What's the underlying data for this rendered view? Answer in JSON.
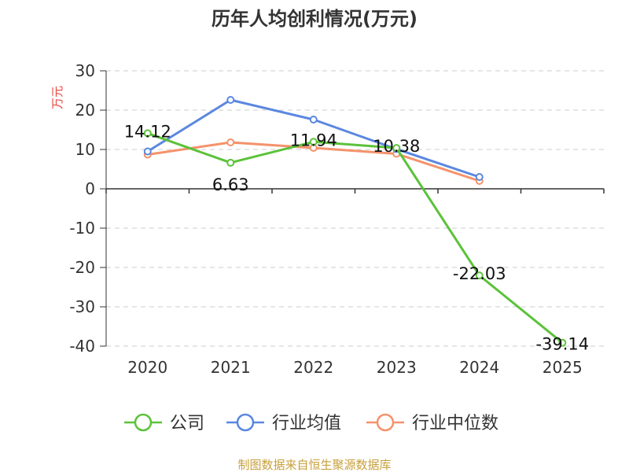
{
  "chart_data": {
    "type": "line",
    "title": "历年人均创利情况(万元)",
    "ylabel": "万元",
    "categories": [
      "2020",
      "2021",
      "2022",
      "2023",
      "2024",
      "2025"
    ],
    "ylim": [
      -40,
      30
    ],
    "yticks": [
      30,
      20,
      10,
      0,
      -10,
      -20,
      -30,
      -40
    ],
    "grid": true,
    "legend_position": "bottom",
    "series": [
      {
        "name": "公司",
        "color": "#5cc23a",
        "values": [
          14.12,
          6.63,
          11.94,
          10.38,
          -22.03,
          -39.14
        ],
        "labels": [
          "14.12",
          "6.63",
          "11.94",
          "10.38",
          "-22.03",
          "-39.14"
        ]
      },
      {
        "name": "行业均值",
        "color": "#5b87e0",
        "values": [
          9.5,
          22.6,
          17.6,
          10.1,
          3.0,
          null
        ]
      },
      {
        "name": "行业中位数",
        "color": "#f4926b",
        "values": [
          8.7,
          11.8,
          10.4,
          8.9,
          2.0,
          null
        ]
      }
    ]
  },
  "colors": {
    "unit_label": "#e8453c",
    "source": "#c8a03c",
    "axis": "#333333",
    "grid": "#cccccc"
  },
  "source_text": "制图数据来自恒生聚源数据库"
}
